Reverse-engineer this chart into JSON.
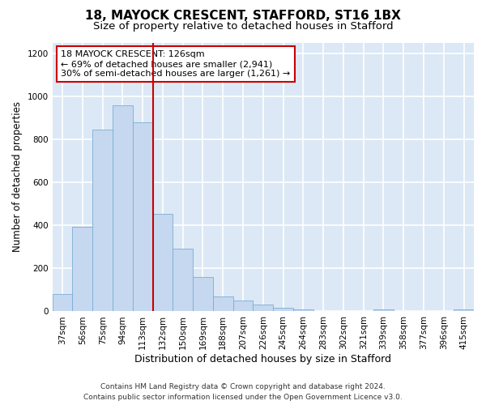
{
  "title_line1": "18, MAYOCK CRESCENT, STAFFORD, ST16 1BX",
  "title_line2": "Size of property relative to detached houses in Stafford",
  "xlabel": "Distribution of detached houses by size in Stafford",
  "ylabel": "Number of detached properties",
  "categories": [
    "37sqm",
    "56sqm",
    "75sqm",
    "94sqm",
    "113sqm",
    "132sqm",
    "150sqm",
    "169sqm",
    "188sqm",
    "207sqm",
    "226sqm",
    "245sqm",
    "264sqm",
    "283sqm",
    "302sqm",
    "321sqm",
    "339sqm",
    "358sqm",
    "377sqm",
    "396sqm",
    "415sqm"
  ],
  "values": [
    80,
    395,
    845,
    960,
    880,
    455,
    290,
    160,
    68,
    50,
    30,
    18,
    8,
    0,
    0,
    0,
    10,
    0,
    0,
    0,
    10
  ],
  "bar_color": "#c5d8f0",
  "bar_edge_color": "#7aadd4",
  "annotation_text": "18 MAYOCK CRESCENT: 126sqm\n← 69% of detached houses are smaller (2,941)\n30% of semi-detached houses are larger (1,261) →",
  "annotation_box_color": "#ffffff",
  "annotation_box_edge_color": "#cc0000",
  "vline_color": "#cc0000",
  "vline_x_index": 4.5,
  "ylim": [
    0,
    1250
  ],
  "yticks": [
    0,
    200,
    400,
    600,
    800,
    1000,
    1200
  ],
  "footer_line1": "Contains HM Land Registry data © Crown copyright and database right 2024.",
  "footer_line2": "Contains public sector information licensed under the Open Government Licence v3.0.",
  "bg_color": "#ffffff",
  "plot_bg_color": "#dce8f5",
  "grid_color": "#ffffff",
  "title_fontsize": 11,
  "subtitle_fontsize": 9.5,
  "ylabel_fontsize": 8.5,
  "xlabel_fontsize": 9,
  "tick_fontsize": 7.5,
  "annot_fontsize": 8,
  "footer_fontsize": 6.5
}
